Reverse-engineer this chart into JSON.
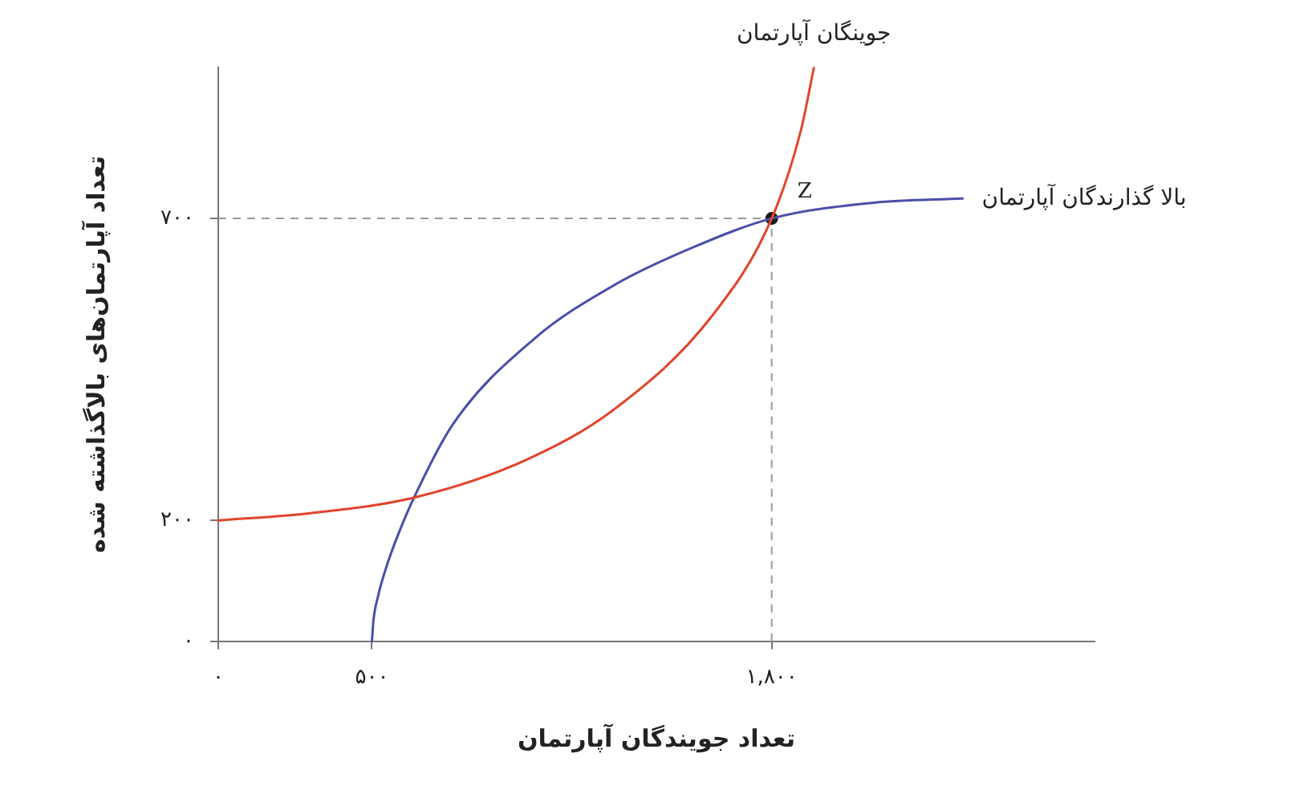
{
  "chart_data": {
    "type": "line",
    "xlabel": "تعداد جویندگان آپارتمان",
    "ylabel": "تعداد آپارتمان‌های بالاگذاشته شده",
    "xlim": [
      0,
      2850
    ],
    "ylim": [
      0,
      950
    ],
    "xticks": [
      {
        "value": 0,
        "label": "۰"
      },
      {
        "value": 500,
        "label": "۵۰۰"
      },
      {
        "value": 1800,
        "label": "۱,۸۰۰"
      }
    ],
    "yticks": [
      {
        "value": 0,
        "label": "۰"
      },
      {
        "value": 200,
        "label": "۲۰۰"
      },
      {
        "value": 700,
        "label": "۷۰۰"
      }
    ],
    "grid": false,
    "legend": false,
    "marker": "none",
    "line_style": "solid",
    "series": [
      {
        "name": "جوینگان آپارتمان",
        "color": "#e0452c",
        "x": [
          0,
          300,
          637,
          1000,
          1290,
          1605,
          1800,
          1895,
          1937
        ],
        "values": [
          200,
          212,
          238,
          300,
          385,
          538,
          700,
          846,
          949
        ]
      },
      {
        "name": "بالا گذارندگان آپارتمان",
        "color": "#4a4fa8",
        "x": [
          500,
          505,
          520,
          545,
          580,
          637,
          763,
          1026,
          1289,
          1553,
          1800,
          2132,
          2421
        ],
        "values": [
          0,
          35,
          75,
          120,
          170,
          238,
          359,
          500,
          590,
          654,
          700,
          726,
          733
        ]
      },
      {
        "type": "scatter",
        "marker": "circle",
        "color": "#1a1a1a",
        "x": [
          1800
        ],
        "values": [
          700
        ]
      }
    ],
    "ref_lines": [
      {
        "axis": "x",
        "value": 1800,
        "color": "#999999",
        "line_style": "dashed"
      },
      {
        "axis": "y",
        "value": 700,
        "color": "#999999",
        "line_style": "dashed"
      }
    ],
    "annotations": [
      {
        "text": "Z",
        "x": 1800,
        "y": 700
      }
    ]
  }
}
